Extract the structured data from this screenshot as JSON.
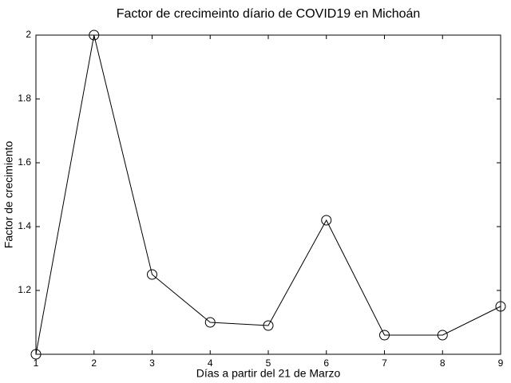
{
  "chart_data": {
    "type": "line",
    "title": "Factor de crecimeinto díario de COVID19 en Michoán",
    "x_label": "Días a partir del 21 de Marzo",
    "y_label": "Factor de crecimiento",
    "x": [
      1,
      2,
      3,
      4,
      5,
      6,
      7,
      8,
      9
    ],
    "values": [
      1,
      2,
      1.25,
      1.1,
      1.09,
      1.42,
      1.06,
      1.06,
      1.15
    ],
    "color": "#000000",
    "xlim": [
      1,
      9
    ],
    "xticks": [
      1,
      2,
      3,
      4,
      5,
      6,
      7,
      8,
      9
    ],
    "ylim": [
      1,
      2
    ],
    "yticks": [
      1.2,
      1.4,
      1.6,
      1.8,
      2
    ]
  }
}
